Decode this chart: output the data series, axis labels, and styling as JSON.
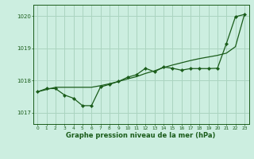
{
  "title": "Graphe pression niveau de la mer (hPa)",
  "background_color": "#cceee0",
  "line_color": "#1a5c1a",
  "grid_color": "#aad4c0",
  "xlim": [
    -0.5,
    23.5
  ],
  "ylim": [
    1016.65,
    1020.35
  ],
  "yticks": [
    1017,
    1018,
    1019,
    1020
  ],
  "xticks": [
    0,
    1,
    2,
    3,
    4,
    5,
    6,
    7,
    8,
    9,
    10,
    11,
    12,
    13,
    14,
    15,
    16,
    17,
    18,
    19,
    20,
    21,
    22,
    23
  ],
  "hours": [
    0,
    1,
    2,
    3,
    4,
    5,
    6,
    7,
    8,
    9,
    10,
    11,
    12,
    13,
    14,
    15,
    16,
    17,
    18,
    19,
    20,
    21,
    22,
    23
  ],
  "pressure_measured": [
    1017.65,
    1017.75,
    1017.75,
    1017.55,
    1017.45,
    1017.22,
    1017.22,
    1017.8,
    1017.88,
    1017.97,
    1018.1,
    1018.18,
    1018.38,
    1018.27,
    1018.42,
    1018.38,
    1018.32,
    1018.37,
    1018.37,
    1018.37,
    1018.38,
    1019.15,
    1019.98,
    1020.05
  ],
  "pressure_trend": [
    1017.65,
    1017.72,
    1017.79,
    1017.79,
    1017.79,
    1017.79,
    1017.79,
    1017.84,
    1017.9,
    1017.97,
    1018.05,
    1018.12,
    1018.22,
    1018.3,
    1018.4,
    1018.48,
    1018.55,
    1018.62,
    1018.68,
    1018.73,
    1018.78,
    1018.85,
    1019.05,
    1020.05
  ]
}
